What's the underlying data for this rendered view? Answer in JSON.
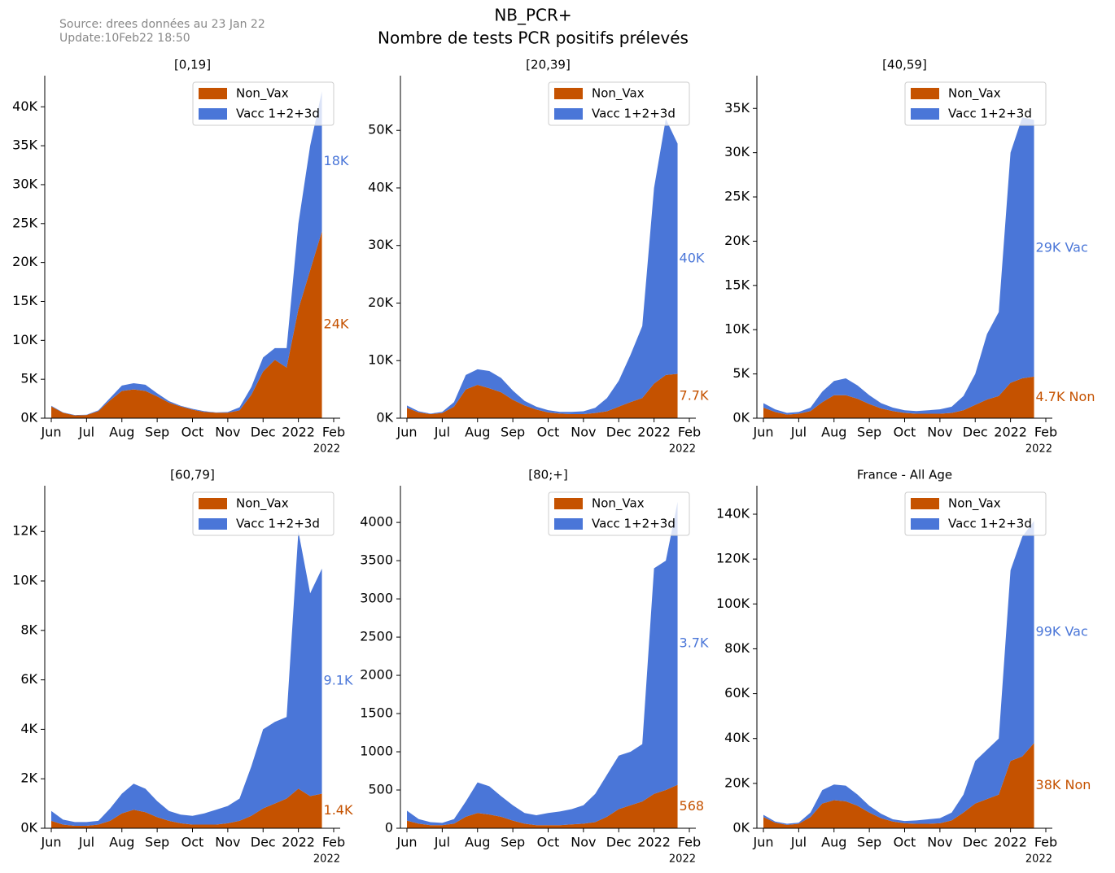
{
  "header": {
    "source": "Source: drees données au 23 Jan 22",
    "update": "Update:10Feb22 18:50",
    "title": "NB_PCR+",
    "subtitle": "Nombre de tests PCR positifs prélevés"
  },
  "chart_data": [
    {
      "type": "area",
      "stacked": true,
      "title": "[0,19]",
      "legend": "upper right",
      "x_offset_label": "2022",
      "categories": [
        "Jun",
        null,
        null,
        "Jul",
        null,
        null,
        "Aug",
        null,
        null,
        "Sep",
        null,
        null,
        "Oct",
        null,
        null,
        "Nov",
        null,
        null,
        "Dec",
        null,
        null,
        "2022",
        null,
        null,
        "Feb"
      ],
      "ylim": [
        0,
        44000
      ],
      "yticks": [
        {
          "value": 0,
          "label": "0K"
        },
        {
          "value": 5000,
          "label": "5K"
        },
        {
          "value": 10000,
          "label": "10K"
        },
        {
          "value": 15000,
          "label": "15K"
        },
        {
          "value": 20000,
          "label": "20K"
        },
        {
          "value": 25000,
          "label": "25K"
        },
        {
          "value": 30000,
          "label": "30K"
        },
        {
          "value": 35000,
          "label": "35K"
        },
        {
          "value": 40000,
          "label": "40K"
        }
      ],
      "series": [
        {
          "name": "Non_Vax",
          "color": "#c55200",
          "values": [
            1500,
            700,
            350,
            400,
            900,
            2300,
            3500,
            3700,
            3500,
            2800,
            2000,
            1500,
            1100,
            800,
            700,
            700,
            1000,
            3000,
            6000,
            7500,
            6500,
            14000,
            19000,
            24000,
            null
          ],
          "value_labels": [
            null,
            null,
            null,
            null,
            null,
            null,
            null,
            null,
            null,
            null,
            null,
            null,
            null,
            null,
            null,
            null,
            null,
            null,
            null,
            null,
            null,
            null,
            null,
            "24K",
            null
          ]
        },
        {
          "name": "Vacc 1+2+3d",
          "color": "#4a76d8",
          "values": [
            100,
            50,
            50,
            50,
            100,
            300,
            700,
            800,
            800,
            400,
            200,
            100,
            100,
            100,
            50,
            100,
            400,
            1000,
            1800,
            1500,
            2500,
            11000,
            16000,
            18000,
            null
          ],
          "value_labels": [
            null,
            null,
            null,
            null,
            null,
            null,
            null,
            null,
            null,
            null,
            null,
            null,
            null,
            null,
            null,
            null,
            null,
            null,
            null,
            null,
            null,
            null,
            null,
            "18K",
            null
          ]
        }
      ]
    },
    {
      "type": "area",
      "stacked": true,
      "title": "[20,39]",
      "legend": "upper right",
      "x_offset_label": "2022",
      "categories": [
        "Jun",
        null,
        null,
        "Jul",
        null,
        null,
        "Aug",
        null,
        null,
        "Sep",
        null,
        null,
        "Oct",
        null,
        null,
        "Nov",
        null,
        null,
        "Dec",
        null,
        null,
        "2022",
        null,
        null,
        "Feb"
      ],
      "ylim": [
        0,
        59500
      ],
      "yticks": [
        {
          "value": 0,
          "label": "0K"
        },
        {
          "value": 10000,
          "label": "10K"
        },
        {
          "value": 20000,
          "label": "20K"
        },
        {
          "value": 30000,
          "label": "30K"
        },
        {
          "value": 40000,
          "label": "40K"
        },
        {
          "value": 50000,
          "label": "50K"
        }
      ],
      "series": [
        {
          "name": "Non_Vax",
          "color": "#c55200",
          "values": [
            1800,
            1000,
            700,
            900,
            2000,
            5000,
            5800,
            5200,
            4500,
            3200,
            2200,
            1500,
            1000,
            800,
            700,
            700,
            900,
            1200,
            2000,
            2800,
            3500,
            6000,
            7500,
            7700,
            null
          ],
          "value_labels": [
            null,
            null,
            null,
            null,
            null,
            null,
            null,
            null,
            null,
            null,
            null,
            null,
            null,
            null,
            null,
            null,
            null,
            null,
            null,
            null,
            null,
            null,
            null,
            "7.7K",
            null
          ]
        },
        {
          "name": "Vacc 1+2+3d",
          "color": "#4a76d8",
          "values": [
            400,
            200,
            100,
            200,
            800,
            2500,
            2700,
            3000,
            2500,
            1600,
            800,
            500,
            400,
            300,
            400,
            500,
            900,
            2300,
            4500,
            8200,
            12500,
            34000,
            44500,
            40000,
            null
          ],
          "value_labels": [
            null,
            null,
            null,
            null,
            null,
            null,
            null,
            null,
            null,
            null,
            null,
            null,
            null,
            null,
            null,
            null,
            null,
            null,
            null,
            null,
            null,
            null,
            null,
            "40K",
            null
          ]
        }
      ]
    },
    {
      "type": "area",
      "stacked": true,
      "title": "[40,59]",
      "legend": "upper right",
      "x_offset_label": "2022",
      "categories": [
        "Jun",
        null,
        null,
        "Jul",
        null,
        null,
        "Aug",
        null,
        null,
        "Sep",
        null,
        null,
        "Oct",
        null,
        null,
        "Nov",
        null,
        null,
        "Dec",
        null,
        null,
        "2022",
        null,
        null,
        "Feb"
      ],
      "ylim": [
        0,
        38700
      ],
      "yticks": [
        {
          "value": 0,
          "label": "0K"
        },
        {
          "value": 5000,
          "label": "5K"
        },
        {
          "value": 10000,
          "label": "10K"
        },
        {
          "value": 15000,
          "label": "15K"
        },
        {
          "value": 20000,
          "label": "20K"
        },
        {
          "value": 25000,
          "label": "25K"
        },
        {
          "value": 30000,
          "label": "30K"
        },
        {
          "value": 35000,
          "label": "35K"
        }
      ],
      "series": [
        {
          "name": "Non_Vax",
          "color": "#c55200",
          "values": [
            1200,
            700,
            400,
            500,
            800,
            1800,
            2600,
            2600,
            2200,
            1600,
            1100,
            800,
            600,
            500,
            500,
            500,
            600,
            900,
            1500,
            2100,
            2500,
            4000,
            4500,
            4700,
            null
          ],
          "value_labels": [
            null,
            null,
            null,
            null,
            null,
            null,
            null,
            null,
            null,
            null,
            null,
            null,
            null,
            null,
            null,
            null,
            null,
            null,
            null,
            null,
            null,
            null,
            null,
            "4.7K Non",
            null
          ]
        },
        {
          "name": "Vacc 1+2+3d",
          "color": "#4a76d8",
          "values": [
            500,
            300,
            200,
            200,
            400,
            1200,
            1600,
            1900,
            1500,
            1000,
            600,
            400,
            300,
            300,
            400,
            500,
            700,
            1600,
            3500,
            7400,
            9500,
            26000,
            29500,
            29000,
            null
          ],
          "value_labels": [
            null,
            null,
            null,
            null,
            null,
            null,
            null,
            null,
            null,
            null,
            null,
            null,
            null,
            null,
            null,
            null,
            null,
            null,
            null,
            null,
            null,
            null,
            null,
            "29K Vac",
            null
          ]
        }
      ]
    },
    {
      "type": "area",
      "stacked": true,
      "title": "[60,79]",
      "legend": "upper right",
      "x_offset_label": "2022",
      "categories": [
        "Jun",
        null,
        null,
        "Jul",
        null,
        null,
        "Aug",
        null,
        null,
        "Sep",
        null,
        null,
        "Oct",
        null,
        null,
        "Nov",
        null,
        null,
        "Dec",
        null,
        null,
        "2022",
        null,
        null,
        "Feb"
      ],
      "ylim": [
        0,
        13850
      ],
      "yticks": [
        {
          "value": 0,
          "label": "0K"
        },
        {
          "value": 2000,
          "label": "2K"
        },
        {
          "value": 4000,
          "label": "4K"
        },
        {
          "value": 6000,
          "label": "6K"
        },
        {
          "value": 8000,
          "label": "8K"
        },
        {
          "value": 10000,
          "label": "10K"
        },
        {
          "value": 12000,
          "label": "12K"
        }
      ],
      "series": [
        {
          "name": "Non_Vax",
          "color": "#c55200",
          "values": [
            300,
            150,
            100,
            100,
            150,
            300,
            600,
            750,
            650,
            450,
            300,
            200,
            150,
            150,
            150,
            200,
            300,
            500,
            800,
            1000,
            1200,
            1600,
            1300,
            1400,
            null
          ],
          "value_labels": [
            null,
            null,
            null,
            null,
            null,
            null,
            null,
            null,
            null,
            null,
            null,
            null,
            null,
            null,
            null,
            null,
            null,
            null,
            null,
            null,
            null,
            null,
            null,
            "1.4K",
            null
          ]
        },
        {
          "name": "Vacc 1+2+3d",
          "color": "#4a76d8",
          "values": [
            400,
            200,
            150,
            150,
            150,
            500,
            800,
            1050,
            950,
            650,
            400,
            350,
            350,
            450,
            600,
            700,
            900,
            2000,
            3200,
            3300,
            3300,
            10400,
            8200,
            9100,
            null
          ],
          "value_labels": [
            null,
            null,
            null,
            null,
            null,
            null,
            null,
            null,
            null,
            null,
            null,
            null,
            null,
            null,
            null,
            null,
            null,
            null,
            null,
            null,
            null,
            null,
            null,
            "9.1K",
            null
          ]
        }
      ]
    },
    {
      "type": "area",
      "stacked": true,
      "title": "[80;+]",
      "legend": "upper right",
      "x_offset_label": "2022",
      "categories": [
        "Jun",
        null,
        null,
        "Jul",
        null,
        null,
        "Aug",
        null,
        null,
        "Sep",
        null,
        null,
        "Oct",
        null,
        null,
        "Nov",
        null,
        null,
        "Dec",
        null,
        null,
        "2022",
        null,
        null,
        "Feb"
      ],
      "ylim": [
        0,
        4480
      ],
      "yticks": [
        0,
        500,
        1000,
        1500,
        2000,
        2500,
        3000,
        3500,
        4000
      ],
      "series": [
        {
          "name": "Non_Vax",
          "color": "#c55200",
          "values": [
            100,
            60,
            40,
            40,
            60,
            150,
            200,
            180,
            150,
            100,
            60,
            40,
            40,
            40,
            50,
            60,
            80,
            150,
            250,
            300,
            350,
            450,
            500,
            568,
            null
          ]
        },
        {
          "name": "Vacc 1+2+3d",
          "color": "#4a76d8",
          "values": [
            130,
            60,
            40,
            30,
            60,
            200,
            400,
            370,
            270,
            200,
            140,
            130,
            160,
            180,
            200,
            240,
            370,
            550,
            700,
            700,
            750,
            2950,
            3000,
            3700,
            null
          ],
          "value_labels": [
            null,
            null,
            null,
            null,
            null,
            null,
            null,
            null,
            null,
            null,
            null,
            null,
            null,
            null,
            null,
            null,
            null,
            null,
            null,
            null,
            null,
            null,
            null,
            "3.7K",
            null
          ]
        }
      ]
    },
    {
      "type": "area",
      "stacked": true,
      "title": "France - All Age",
      "legend": "upper right",
      "x_offset_label": "2022",
      "categories": [
        "Jun",
        null,
        null,
        "Jul",
        null,
        null,
        "Aug",
        null,
        null,
        "Sep",
        null,
        null,
        "Oct",
        null,
        null,
        "Nov",
        null,
        null,
        "Dec",
        null,
        null,
        "2022",
        null,
        null,
        "Feb"
      ],
      "ylim": [
        0,
        152700
      ],
      "yticks": [
        {
          "value": 0,
          "label": "0K"
        },
        {
          "value": 20000,
          "label": "20K"
        },
        {
          "value": 40000,
          "label": "40K"
        },
        {
          "value": 60000,
          "label": "60K"
        },
        {
          "value": 80000,
          "label": "80K"
        },
        {
          "value": 100000,
          "label": "100K"
        },
        {
          "value": 120000,
          "label": "120K"
        },
        {
          "value": 140000,
          "label": "140K"
        }
      ],
      "series": [
        {
          "name": "Non_Vax",
          "color": "#c55200",
          "values": [
            5000,
            2500,
            1500,
            2000,
            5000,
            11000,
            12500,
            12000,
            10000,
            7000,
            4500,
            3000,
            2200,
            2000,
            2000,
            2200,
            3500,
            7000,
            11000,
            13000,
            15000,
            30000,
            32000,
            38000,
            null
          ],
          "value_labels": [
            null,
            null,
            null,
            null,
            null,
            null,
            null,
            null,
            null,
            null,
            null,
            null,
            null,
            null,
            null,
            null,
            null,
            null,
            null,
            null,
            null,
            null,
            null,
            "38K Non",
            null
          ]
        },
        {
          "name": "Vacc 1+2+3d",
          "color": "#4a76d8",
          "values": [
            1000,
            500,
            500,
            500,
            2000,
            6000,
            7000,
            7000,
            5000,
            3000,
            2000,
            1000,
            1000,
            1500,
            2000,
            2300,
            3500,
            8000,
            19000,
            22000,
            25000,
            85000,
            98000,
            99000,
            null
          ],
          "value_labels": [
            null,
            null,
            null,
            null,
            null,
            null,
            null,
            null,
            null,
            null,
            null,
            null,
            null,
            null,
            null,
            null,
            null,
            null,
            null,
            null,
            null,
            null,
            null,
            "99K Vac",
            null
          ]
        }
      ]
    }
  ]
}
